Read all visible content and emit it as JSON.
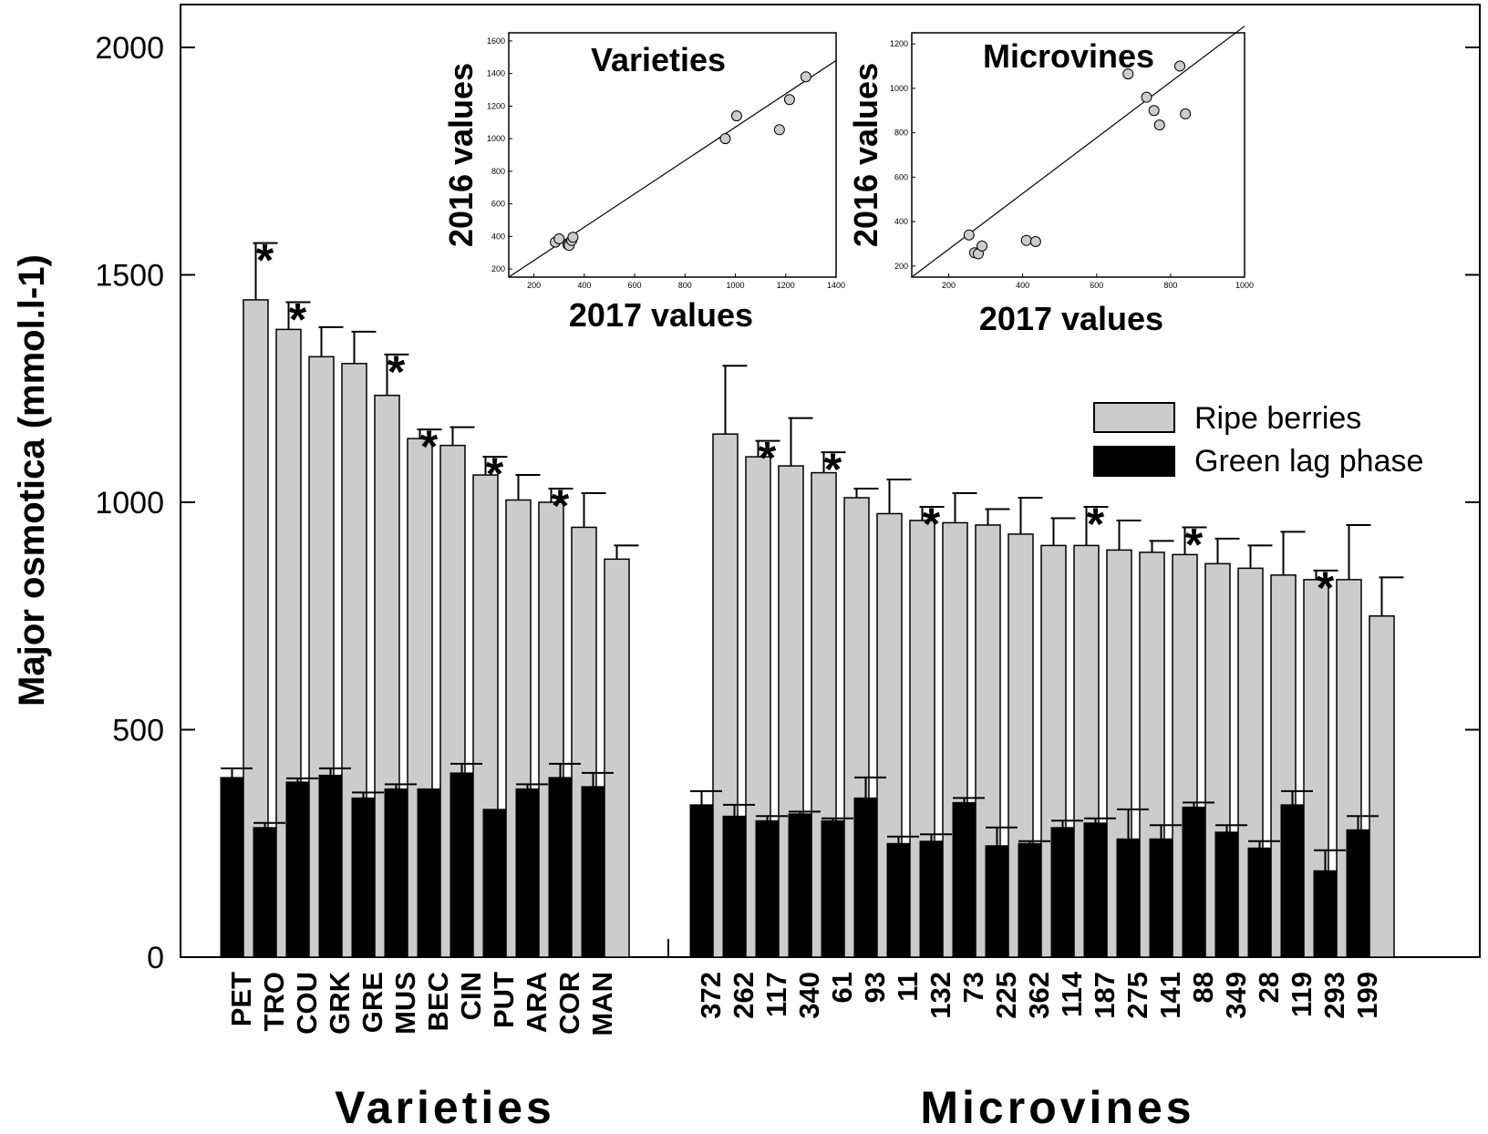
{
  "chart_data": [
    {
      "type": "bar",
      "title": "",
      "ylabel": "Major osmotica (mmol.l-1)",
      "ylim": [
        0,
        2000
      ],
      "yticks": [
        0,
        500,
        1000,
        1500,
        2000
      ],
      "legend": {
        "placement": "right",
        "entries": [
          {
            "name": "Ripe berries",
            "color": "#cccccc"
          },
          {
            "name": "Green lag phase",
            "color": "#000000"
          }
        ]
      },
      "significance_marker": "*",
      "groups": [
        {
          "name": "Varieties",
          "categories": [
            "PET",
            "TRO",
            "COU",
            "GRK",
            "GRE",
            "MUS",
            "BEC",
            "CIN",
            "PUT",
            "ARA",
            "COR",
            "MAN"
          ],
          "series": [
            {
              "name": "Ripe berries",
              "values": [
                1445,
                1380,
                1320,
                1305,
                1235,
                1140,
                1125,
                1060,
                1005,
                1000,
                945,
                875
              ],
              "errors": [
                125,
                60,
                65,
                70,
                90,
                20,
                40,
                40,
                55,
                30,
                75,
                30
              ]
            },
            {
              "name": "Green lag phase",
              "values": [
                395,
                285,
                385,
                400,
                350,
                370,
                370,
                405,
                325,
                370,
                395,
                375
              ],
              "errors": [
                20,
                10,
                8,
                15,
                12,
                10,
                0,
                20,
                0,
                10,
                30,
                30
              ]
            }
          ],
          "significant": [
            true,
            true,
            false,
            false,
            true,
            true,
            false,
            true,
            false,
            true,
            false,
            false
          ]
        },
        {
          "name": "Microvines",
          "categories": [
            "372",
            "262",
            "117",
            "340",
            "61",
            "93",
            "11",
            "132",
            "73",
            "225",
            "362",
            "114",
            "187",
            "275",
            "141",
            "88",
            "349",
            "28",
            "119",
            "293",
            "199"
          ],
          "series": [
            {
              "name": "Ripe berries",
              "values": [
                1150,
                1100,
                1080,
                1065,
                1010,
                975,
                960,
                955,
                950,
                930,
                905,
                905,
                895,
                890,
                885,
                865,
                855,
                840,
                830,
                830,
                750
              ],
              "errors": [
                150,
                35,
                105,
                45,
                20,
                75,
                30,
                65,
                35,
                80,
                60,
                85,
                65,
                25,
                60,
                55,
                50,
                95,
                20,
                120,
                85
              ]
            },
            {
              "name": "Green lag phase",
              "values": [
                335,
                310,
                300,
                315,
                300,
                350,
                250,
                255,
                340,
                245,
                250,
                285,
                295,
                260,
                260,
                330,
                275,
                240,
                335,
                190,
                280
              ]
            },
            {
              "name": "Green lag phase error",
              "values": [
                30,
                25,
                10,
                5,
                5,
                45,
                15,
                15,
                10,
                40,
                5,
                15,
                10,
                65,
                30,
                10,
                15,
                15,
                30,
                45,
                30
              ]
            }
          ],
          "significant": [
            false,
            true,
            false,
            true,
            false,
            false,
            true,
            false,
            false,
            false,
            false,
            true,
            false,
            false,
            true,
            false,
            false,
            false,
            true,
            false,
            false
          ]
        }
      ]
    },
    {
      "type": "scatter",
      "title": "Varieties",
      "xlabel": "2017 values",
      "ylabel": "2016 values",
      "xlim": [
        100,
        1400
      ],
      "ylim": [
        150,
        1650
      ],
      "xticks": [
        200,
        400,
        600,
        800,
        1000,
        1200,
        1400
      ],
      "yticks": [
        200,
        400,
        600,
        800,
        1000,
        1200,
        1400,
        1600
      ],
      "points": [
        [
          285,
          365
        ],
        [
          300,
          385
        ],
        [
          335,
          350
        ],
        [
          340,
          345
        ],
        [
          350,
          375
        ],
        [
          355,
          395
        ],
        [
          960,
          1000
        ],
        [
          1005,
          1140
        ],
        [
          1175,
          1055
        ],
        [
          1215,
          1240
        ],
        [
          1280,
          1380
        ]
      ],
      "fit_line": [
        [
          100,
          150
        ],
        [
          1400,
          1480
        ]
      ]
    },
    {
      "type": "scatter",
      "title": "Microvines",
      "xlabel": "2017 values",
      "ylabel": "2016 values",
      "xlim": [
        100,
        1000
      ],
      "ylim": [
        150,
        1250
      ],
      "xticks": [
        200,
        400,
        600,
        800,
        1000
      ],
      "yticks": [
        200,
        400,
        600,
        800,
        1000,
        1200
      ],
      "points": [
        [
          255,
          340
        ],
        [
          270,
          260
        ],
        [
          280,
          255
        ],
        [
          290,
          290
        ],
        [
          410,
          315
        ],
        [
          435,
          310
        ],
        [
          685,
          1065
        ],
        [
          735,
          960
        ],
        [
          755,
          900
        ],
        [
          770,
          835
        ],
        [
          825,
          1100
        ],
        [
          840,
          885
        ]
      ],
      "fit_line": [
        [
          100,
          150
        ],
        [
          1000,
          1280
        ]
      ]
    }
  ]
}
